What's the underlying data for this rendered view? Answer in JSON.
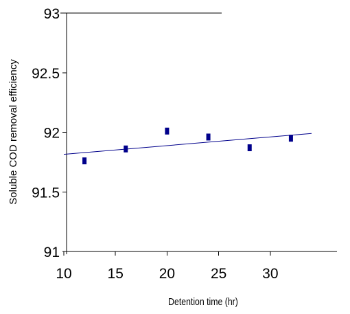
{
  "chart_data": {
    "type": "scatter",
    "title": "",
    "xlabel": "Detention time (hr)",
    "ylabel": "Soluble COD removal efficiency",
    "xlim": [
      10,
      34
    ],
    "ylim": [
      91,
      93
    ],
    "x_ticks": [
      10,
      15,
      20,
      25,
      30
    ],
    "x_tick_labels": [
      "10",
      "15",
      "20",
      "25",
      "30"
    ],
    "y_ticks": [
      91,
      91.5,
      92,
      92.5,
      93
    ],
    "y_tick_labels": [
      "91",
      "91.5",
      "92",
      "92.5",
      "93"
    ],
    "grid": false,
    "legend": "none",
    "series": [
      {
        "type": "scatter",
        "x": [
          12,
          16,
          20,
          24,
          28,
          32
        ],
        "y": [
          91.76,
          91.86,
          92.01,
          91.96,
          91.87,
          91.95
        ],
        "color": "#00008b"
      }
    ],
    "trendline": {
      "x": [
        10,
        34
      ],
      "y": [
        91.815,
        91.99
      ],
      "color": "#00008b"
    }
  }
}
